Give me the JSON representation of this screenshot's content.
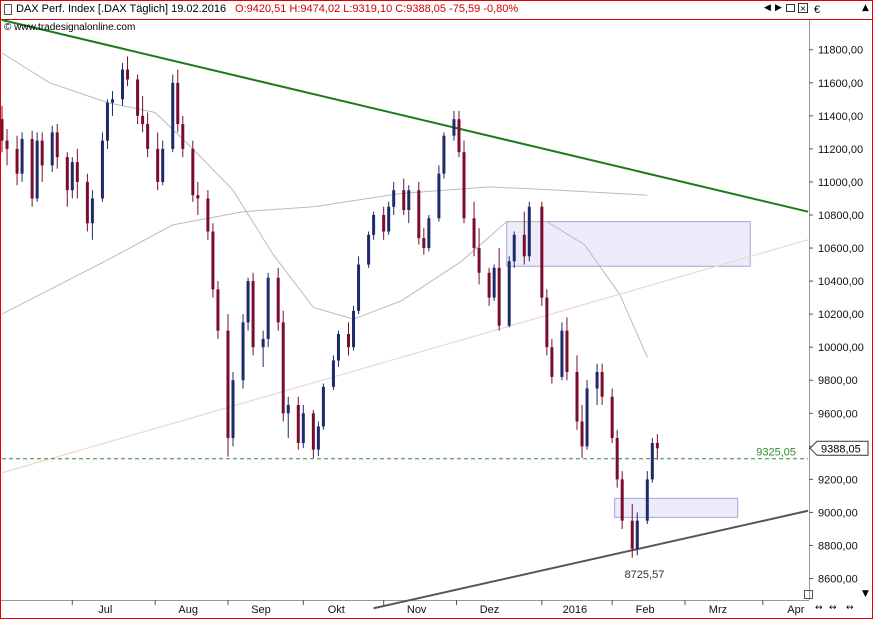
{
  "header": {
    "instrument": "DAX Perf. Index [.DAX  Täglich] 19.02.2016",
    "ohlc": "O:9420,51 H:9474,02 L:9319,10 C:9388,05 -75,59 -0,80%",
    "watermark": "© www.tradesignalonline.com",
    "currency_symbol": "€"
  },
  "controls": {
    "menu_icon": "menu-arrow-icon",
    "window_buttons": [
      "prev-icon",
      "next-icon",
      "restore-icon",
      "close-icon"
    ],
    "scroll_buttons": [
      "scroll-left-right-icon",
      "zoom-out-icon",
      "zoom-in-icon"
    ]
  },
  "colors": {
    "bull_candle": "#1f2a6b",
    "bear_candle": "#7a0c2e",
    "resistance_line": "#1d7a1d",
    "support_line": "#555555",
    "channel_line": "#f0d6d6",
    "moving_average": "#bbbbbb",
    "reference_line": "#2e8b2e",
    "zone_fill": "#ececfb",
    "zone_border": "#a3a3d8",
    "frame": "#e00000"
  },
  "chart_data": {
    "type": "candlestick",
    "y_axis": {
      "range": [
        8470,
        11980
      ],
      "ticks": [
        8600,
        8800,
        9000,
        9200,
        9400,
        9600,
        9800,
        10000,
        10200,
        10400,
        10600,
        10800,
        11000,
        11200,
        11400,
        11600,
        11800
      ],
      "tick_labels": [
        "8600,00",
        "8800,00",
        "9000,00",
        "9200,00",
        "9400,00",
        "9600,00",
        "9800,00",
        "10000,00",
        "10200,00",
        "10400,00",
        "10600,00",
        "10800,00",
        "11000,00",
        "11200,00",
        "11400,00",
        "11600,00",
        "11800,00"
      ]
    },
    "x_axis": {
      "range": [
        "2015-06-03",
        "2016-04-19"
      ],
      "ticks": [
        "2015-07-01",
        "2015-08-03",
        "2015-09-01",
        "2015-10-01",
        "2015-11-02",
        "2015-12-01",
        "2016-01-04",
        "2016-02-01",
        "2016-03-01",
        "2016-04-01"
      ],
      "tick_labels": [
        "Jul",
        "Aug",
        "Sep",
        "Okt",
        "Nov",
        "Dez",
        "2016",
        "Feb",
        "Mrz",
        "Apr"
      ]
    },
    "last_close": 9388.05,
    "last_close_label": "9388,05",
    "reference_level": 9325.05,
    "reference_label": "9325,05",
    "low_annotation": {
      "date": "2016-01-25",
      "value": 8725.57,
      "label": "8725,57"
    },
    "trendlines": [
      {
        "name": "resistance",
        "from": [
          "2015-06-03",
          11980
        ],
        "to": [
          "2016-04-19",
          10820
        ]
      },
      {
        "name": "support",
        "from": [
          "2015-10-29",
          8420
        ],
        "to": [
          "2016-04-19",
          9010
        ]
      },
      {
        "name": "channel",
        "from": [
          "2015-06-03",
          9240
        ],
        "to": [
          "2016-04-19",
          10650
        ]
      }
    ],
    "zones": [
      {
        "from_date": "2015-12-21",
        "to_date": "2016-03-27",
        "low": 10490,
        "high": 10760
      },
      {
        "from_date": "2016-02-02",
        "to_date": "2016-03-22",
        "low": 8970,
        "high": 9085
      }
    ],
    "moving_averages": [
      {
        "kind": "long",
        "points": [
          [
            "2015-06-03",
            10200
          ],
          [
            "2015-07-14",
            10520
          ],
          [
            "2015-08-10",
            10740
          ],
          [
            "2015-09-07",
            10820
          ],
          [
            "2015-10-05",
            10850
          ],
          [
            "2015-11-09",
            10930
          ],
          [
            "2015-12-14",
            10970
          ],
          [
            "2016-01-11",
            10950
          ],
          [
            "2016-02-15",
            10920
          ]
        ]
      },
      {
        "kind": "short",
        "points": [
          [
            "2015-06-03",
            11780
          ],
          [
            "2015-06-22",
            11600
          ],
          [
            "2015-07-15",
            11480
          ],
          [
            "2015-08-03",
            11420
          ],
          [
            "2015-08-18",
            11200
          ],
          [
            "2015-09-03",
            10950
          ],
          [
            "2015-09-19",
            10560
          ],
          [
            "2015-10-05",
            10240
          ],
          [
            "2015-10-21",
            10170
          ],
          [
            "2015-11-09",
            10280
          ],
          [
            "2015-12-03",
            10520
          ],
          [
            "2015-12-21",
            10760
          ],
          [
            "2016-01-06",
            10760
          ],
          [
            "2016-01-21",
            10620
          ],
          [
            "2016-02-04",
            10320
          ],
          [
            "2016-02-15",
            9940
          ]
        ]
      }
    ],
    "candles": [
      [
        "2015-06-03",
        11380,
        11460,
        11180,
        11250
      ],
      [
        "2015-06-05",
        11250,
        11320,
        11100,
        11200
      ],
      [
        "2015-06-09",
        11200,
        11280,
        10980,
        11050
      ],
      [
        "2015-06-11",
        11050,
        11300,
        11000,
        11260
      ],
      [
        "2015-06-15",
        11260,
        11310,
        10850,
        10900
      ],
      [
        "2015-06-17",
        10900,
        11300,
        10880,
        11250
      ],
      [
        "2015-06-19",
        11250,
        11300,
        11000,
        11100
      ],
      [
        "2015-06-23",
        11100,
        11340,
        11060,
        11300
      ],
      [
        "2015-06-25",
        11300,
        11350,
        11080,
        11150
      ],
      [
        "2015-06-29",
        11150,
        11180,
        10850,
        10950
      ],
      [
        "2015-07-01",
        10950,
        11150,
        10900,
        11120
      ],
      [
        "2015-07-03",
        11120,
        11200,
        10900,
        11000
      ],
      [
        "2015-07-07",
        11000,
        11050,
        10700,
        10750
      ],
      [
        "2015-07-09",
        10750,
        10950,
        10650,
        10900
      ],
      [
        "2015-07-13",
        10900,
        11300,
        10880,
        11250
      ],
      [
        "2015-07-15",
        11250,
        11500,
        11200,
        11480
      ],
      [
        "2015-07-17",
        11480,
        11550,
        11400,
        11500
      ],
      [
        "2015-07-21",
        11500,
        11720,
        11460,
        11680
      ],
      [
        "2015-07-23",
        11680,
        11760,
        11580,
        11620
      ],
      [
        "2015-07-27",
        11620,
        11650,
        11350,
        11400
      ],
      [
        "2015-07-29",
        11400,
        11520,
        11300,
        11350
      ],
      [
        "2015-07-31",
        11350,
        11420,
        11150,
        11200
      ],
      [
        "2015-08-04",
        11200,
        11300,
        10950,
        11000
      ],
      [
        "2015-08-06",
        11000,
        11250,
        10980,
        11200
      ],
      [
        "2015-08-10",
        11200,
        11650,
        11180,
        11600
      ],
      [
        "2015-08-12",
        11600,
        11680,
        11300,
        11350
      ],
      [
        "2015-08-14",
        11350,
        11400,
        11150,
        11200
      ],
      [
        "2015-08-18",
        11200,
        11250,
        10880,
        10920
      ],
      [
        "2015-08-20",
        10920,
        11000,
        10800,
        10900
      ],
      [
        "2015-08-24",
        10900,
        10950,
        10650,
        10700
      ],
      [
        "2015-08-26",
        10700,
        10750,
        10300,
        10350
      ],
      [
        "2015-08-28",
        10350,
        10400,
        10050,
        10100
      ],
      [
        "2015-09-01",
        10100,
        10200,
        9338,
        9450
      ],
      [
        "2015-09-03",
        9450,
        9850,
        9400,
        9800
      ],
      [
        "2015-09-07",
        9800,
        10200,
        9750,
        10150
      ],
      [
        "2015-09-09",
        10150,
        10420,
        10100,
        10400
      ],
      [
        "2015-09-11",
        10400,
        10450,
        9950,
        10000
      ],
      [
        "2015-09-15",
        10000,
        10100,
        9880,
        10050
      ],
      [
        "2015-09-17",
        10050,
        10450,
        10000,
        10420
      ],
      [
        "2015-09-21",
        10420,
        10480,
        10100,
        10150
      ],
      [
        "2015-09-23",
        10150,
        10220,
        9550,
        9600
      ],
      [
        "2015-09-25",
        9600,
        9700,
        9450,
        9650
      ],
      [
        "2015-09-29",
        9650,
        9700,
        9380,
        9420
      ],
      [
        "2015-10-01",
        9420,
        9650,
        9390,
        9600
      ],
      [
        "2015-10-05",
        9600,
        9620,
        9330,
        9380
      ],
      [
        "2015-10-07",
        9380,
        9550,
        9340,
        9520
      ],
      [
        "2015-10-09",
        9520,
        9780,
        9500,
        9760
      ],
      [
        "2015-10-13",
        9760,
        9950,
        9740,
        9920
      ],
      [
        "2015-10-15",
        9920,
        10100,
        9880,
        10080
      ],
      [
        "2015-10-19",
        10080,
        10150,
        9950,
        10000
      ],
      [
        "2015-10-21",
        10000,
        10250,
        9980,
        10220
      ],
      [
        "2015-10-23",
        10220,
        10550,
        10200,
        10500
      ],
      [
        "2015-10-27",
        10500,
        10700,
        10480,
        10680
      ],
      [
        "2015-10-29",
        10680,
        10820,
        10650,
        10800
      ],
      [
        "2015-11-02",
        10800,
        10850,
        10650,
        10700
      ],
      [
        "2015-11-04",
        10700,
        10880,
        10680,
        10850
      ],
      [
        "2015-11-06",
        10850,
        11000,
        10800,
        10950
      ],
      [
        "2015-11-10",
        10950,
        11020,
        10800,
        10830
      ],
      [
        "2015-11-12",
        10830,
        10980,
        10750,
        10950
      ],
      [
        "2015-11-16",
        10950,
        11000,
        10620,
        10660
      ],
      [
        "2015-11-18",
        10660,
        10720,
        10560,
        10600
      ],
      [
        "2015-11-20",
        10600,
        10800,
        10580,
        10780
      ],
      [
        "2015-11-24",
        10780,
        11100,
        10760,
        11050
      ],
      [
        "2015-11-26",
        11050,
        11300,
        11020,
        11280
      ],
      [
        "2015-11-30",
        11280,
        11430,
        11250,
        11380
      ],
      [
        "2015-12-02",
        11380,
        11430,
        11150,
        11180
      ],
      [
        "2015-12-04",
        11180,
        11250,
        10750,
        10780
      ],
      [
        "2015-12-08",
        10780,
        10880,
        10550,
        10600
      ],
      [
        "2015-12-10",
        10600,
        10720,
        10380,
        10450
      ],
      [
        "2015-12-14",
        10450,
        10480,
        10250,
        10300
      ],
      [
        "2015-12-16",
        10300,
        10500,
        10280,
        10480
      ],
      [
        "2015-12-18",
        10480,
        10600,
        10100,
        10130
      ],
      [
        "2015-12-22",
        10130,
        10550,
        10120,
        10520
      ],
      [
        "2015-12-24",
        10520,
        10700,
        10480,
        10680
      ],
      [
        "2015-12-28",
        10680,
        10820,
        10500,
        10550
      ],
      [
        "2015-12-30",
        10550,
        10880,
        10520,
        10850
      ],
      [
        "2016-01-04",
        10850,
        10880,
        10250,
        10300
      ],
      [
        "2016-01-06",
        10300,
        10350,
        9950,
        10000
      ],
      [
        "2016-01-08",
        10000,
        10050,
        9780,
        9820
      ],
      [
        "2016-01-12",
        9820,
        10150,
        9800,
        10100
      ],
      [
        "2016-01-14",
        10100,
        10180,
        9800,
        9850
      ],
      [
        "2016-01-18",
        9850,
        9950,
        9500,
        9550
      ],
      [
        "2016-01-20",
        9550,
        9650,
        9330,
        9400
      ],
      [
        "2016-01-22",
        9400,
        9800,
        9380,
        9750
      ],
      [
        "2016-01-26",
        9750,
        9900,
        9650,
        9850
      ],
      [
        "2016-01-28",
        9850,
        9900,
        9650,
        9700
      ],
      [
        "2016-02-01",
        9700,
        9750,
        9420,
        9450
      ],
      [
        "2016-02-03",
        9450,
        9500,
        9150,
        9200
      ],
      [
        "2016-02-05",
        9200,
        9250,
        8900,
        8950
      ],
      [
        "2016-02-09",
        8950,
        9050,
        8725.57,
        8780
      ],
      [
        "2016-02-11",
        8780,
        9000,
        8740,
        8950
      ],
      [
        "2016-02-15",
        8950,
        9250,
        8930,
        9200
      ],
      [
        "2016-02-17",
        9200,
        9450,
        9180,
        9420
      ],
      [
        "2016-02-19",
        9420.51,
        9474.02,
        9319.1,
        9388.05
      ]
    ]
  }
}
